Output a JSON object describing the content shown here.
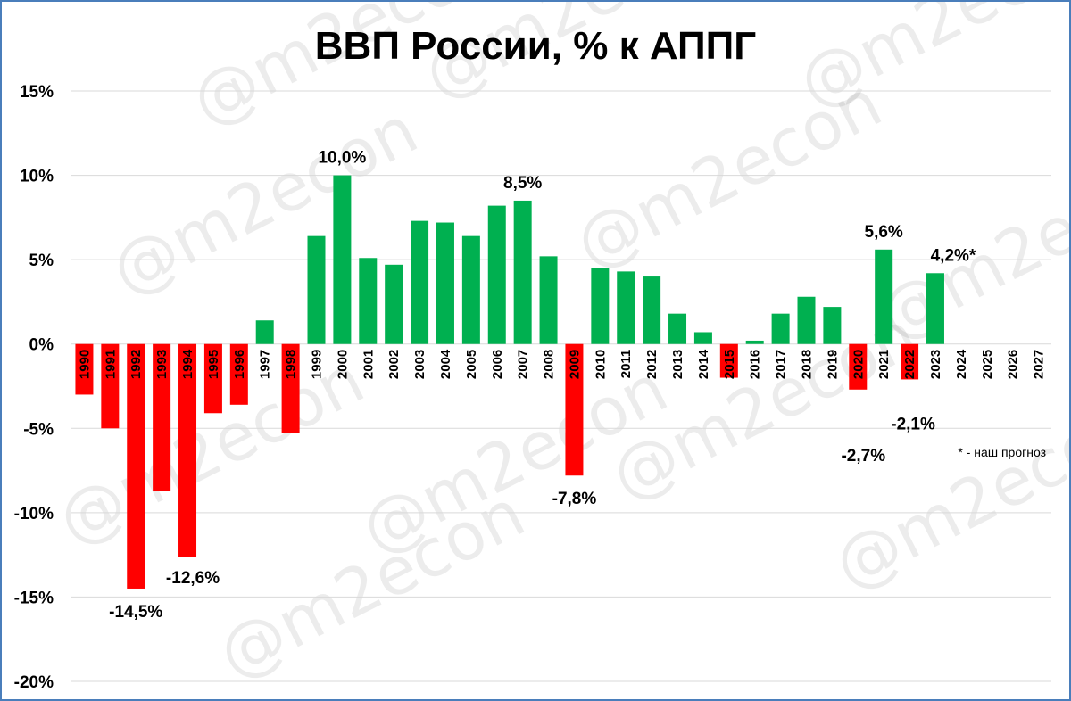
{
  "chart_data": {
    "type": "bar",
    "title": "ВВП России, % к АППГ",
    "xlabel": "",
    "ylabel": "",
    "ylim": [
      -20,
      15
    ],
    "yticks": [
      15,
      10,
      5,
      0,
      -5,
      -10,
      -15,
      -20
    ],
    "ytick_labels": [
      "15%",
      "10%",
      "5%",
      "0%",
      "-5%",
      "-10%",
      "-15%",
      "-20%"
    ],
    "grid": true,
    "categories": [
      "1990",
      "1991",
      "1992",
      "1993",
      "1994",
      "1995",
      "1996",
      "1997",
      "1998",
      "1999",
      "2000",
      "2001",
      "2002",
      "2003",
      "2004",
      "2005",
      "2006",
      "2007",
      "2008",
      "2009",
      "2010",
      "2011",
      "2012",
      "2013",
      "2014",
      "2015",
      "2016",
      "2017",
      "2018",
      "2019",
      "2020",
      "2021",
      "2022",
      "2023",
      "2024",
      "2025",
      "2026",
      "2027"
    ],
    "values": [
      -3.0,
      -5.0,
      -14.5,
      -8.7,
      -12.6,
      -4.1,
      -3.6,
      1.4,
      -5.3,
      6.4,
      10.0,
      5.1,
      4.7,
      7.3,
      7.2,
      6.4,
      8.2,
      8.5,
      5.2,
      -7.8,
      4.5,
      4.3,
      4.0,
      1.8,
      0.7,
      -2.0,
      0.2,
      1.8,
      2.8,
      2.2,
      -2.7,
      5.6,
      -2.1,
      4.2,
      null,
      null,
      null,
      null
    ],
    "colors": {
      "positive": "#00b050",
      "negative": "#ff0000"
    },
    "data_labels": [
      {
        "category": "1992",
        "text": "-14,5%"
      },
      {
        "category": "1994",
        "text": "-12,6%"
      },
      {
        "category": "2000",
        "text": "10,0%"
      },
      {
        "category": "2007",
        "text": "8,5%"
      },
      {
        "category": "2009",
        "text": "-7,8%"
      },
      {
        "category": "2020",
        "text": "-2,7%"
      },
      {
        "category": "2021",
        "text": "5,6%"
      },
      {
        "category": "2022",
        "text": "-2,1%"
      },
      {
        "category": "2023",
        "text": "4,2%*"
      }
    ],
    "annotation": "* - наш прогноз",
    "watermark": "@m2econ"
  }
}
